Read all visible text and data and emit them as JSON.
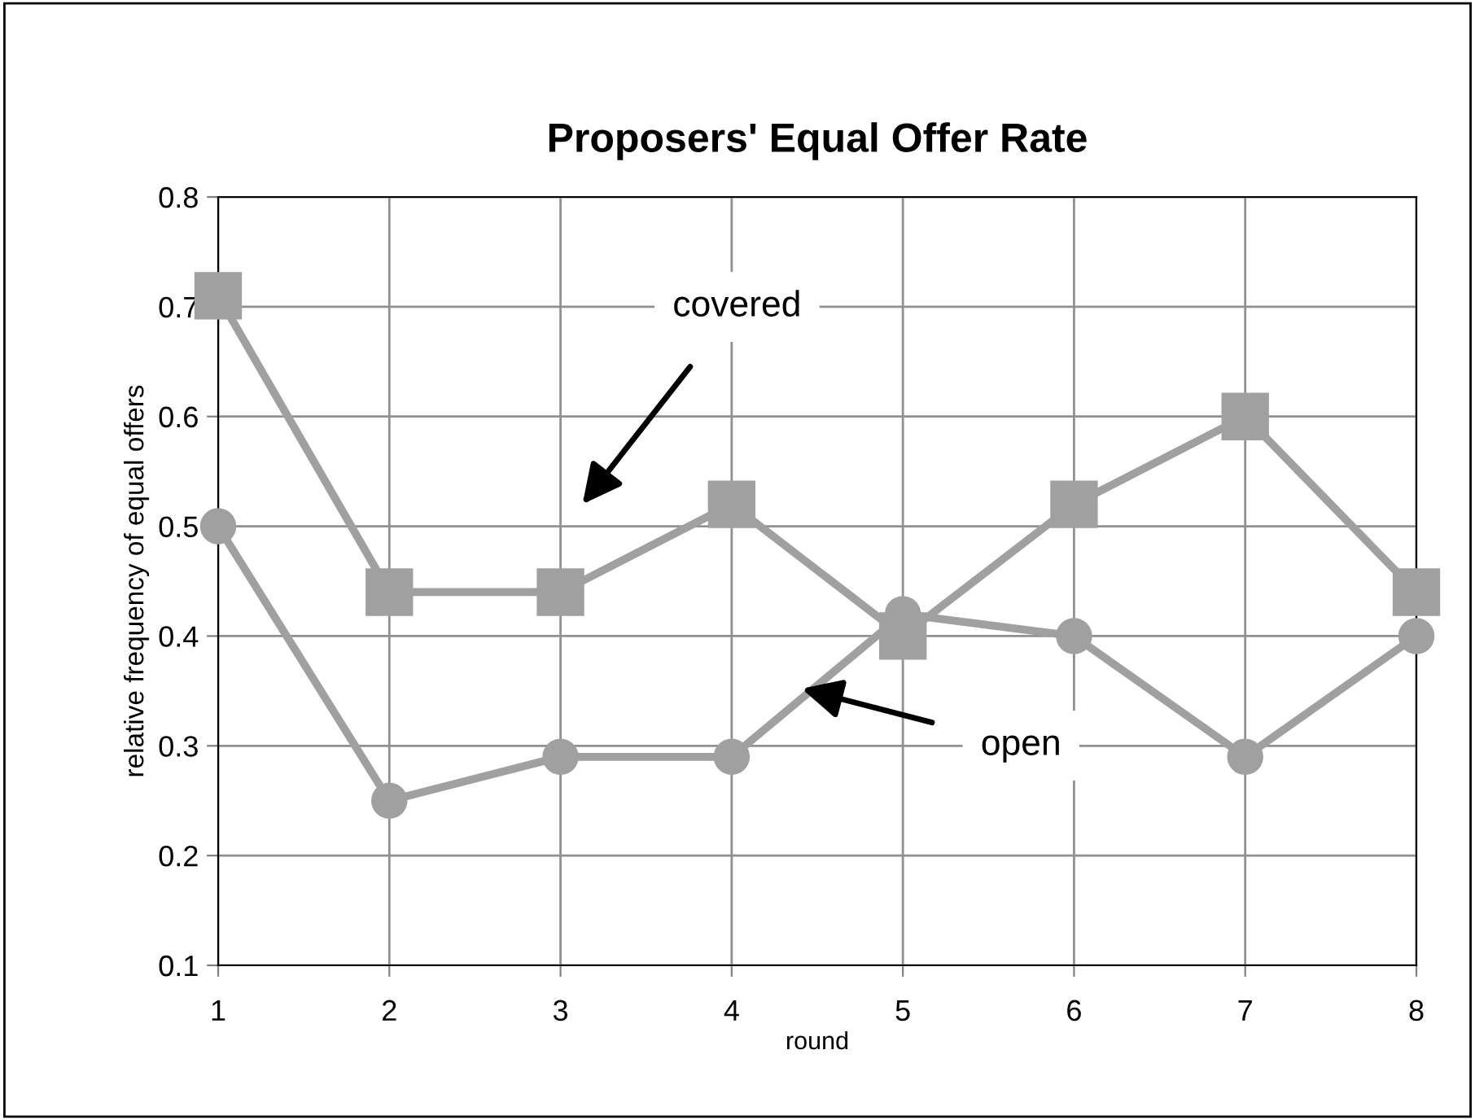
{
  "chart_data": {
    "type": "line",
    "title": "Proposers' Equal Offer Rate",
    "xlabel": "round",
    "ylabel": "relative frequency of equal offers",
    "x": [
      1,
      2,
      3,
      4,
      5,
      6,
      7,
      8
    ],
    "series": [
      {
        "color": "#a0a0a0",
        "marker": "square",
        "values": [
          0.71,
          0.44,
          0.44,
          0.52,
          0.4,
          0.52,
          0.6,
          0.44
        ]
      },
      {
        "color": "#a0a0a0",
        "marker": "circle",
        "values": [
          0.5,
          0.25,
          0.29,
          0.29,
          0.42,
          0.4,
          0.29,
          0.4
        ]
      }
    ],
    "annotations": [
      "covered",
      "open"
    ],
    "xlim": [
      1,
      8
    ],
    "xticks": [
      1,
      2,
      3,
      4,
      5,
      6,
      7,
      8
    ],
    "ylim": [
      0.1,
      0.8
    ],
    "yticks": [
      0.1,
      0.2,
      0.3,
      0.4,
      0.5,
      0.6,
      0.7,
      0.8
    ],
    "grid": true,
    "line_style": "solid"
  }
}
